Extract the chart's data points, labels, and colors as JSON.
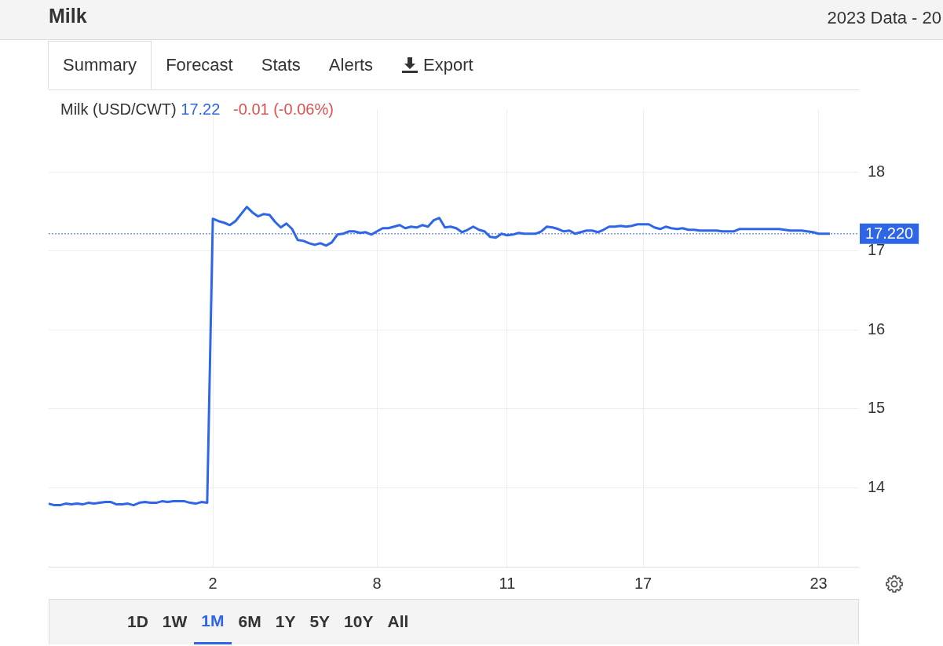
{
  "chart_data": {
    "type": "line",
    "title": "Milk",
    "subtitle": "2023 Data - 20",
    "ylabel": "Milk (USD/CWT)",
    "annotations": [
      "17.22",
      "-0.01 (-0.06%)",
      "Summary",
      "Forecast",
      "Stats",
      "Alerts",
      "Export",
      "1D",
      "1W",
      "1M",
      "6M",
      "1Y",
      "5Y",
      "10Y",
      "All"
    ],
    "categories": [
      null,
      null,
      null,
      null,
      null,
      null,
      null,
      null,
      null,
      null,
      null,
      null,
      null,
      null,
      null,
      null,
      null,
      null,
      null,
      null,
      null,
      null,
      null,
      null,
      null,
      null,
      null,
      null,
      null,
      "2",
      null,
      null,
      null,
      null,
      null,
      null,
      null,
      null,
      null,
      null,
      null,
      null,
      null,
      null,
      null,
      null,
      null,
      null,
      null,
      null,
      null,
      null,
      null,
      null,
      null,
      null,
      null,
      null,
      "8",
      null,
      null,
      null,
      null,
      null,
      null,
      null,
      null,
      null,
      null,
      null,
      null,
      null,
      null,
      null,
      null,
      null,
      null,
      null,
      null,
      null,
      null,
      "11",
      null,
      null,
      null,
      null,
      null,
      null,
      null,
      null,
      null,
      null,
      null,
      null,
      null,
      null,
      null,
      null,
      null,
      null,
      null,
      null,
      null,
      null,
      null,
      "17",
      null,
      null,
      null,
      null,
      null,
      null,
      null,
      null,
      null,
      null,
      null,
      null,
      null,
      null,
      null,
      null,
      null,
      null,
      null,
      null,
      null,
      null,
      null,
      null,
      null,
      null,
      null,
      null,
      null,
      null,
      "23",
      null,
      null,
      null,
      null,
      null,
      null,
      null
    ],
    "series": [
      {
        "color": "#2f66e8",
        "values": [
          13.8,
          13.78,
          13.78,
          13.8,
          13.79,
          13.8,
          13.79,
          13.81,
          13.8,
          13.81,
          13.82,
          13.82,
          13.79,
          13.79,
          13.8,
          13.78,
          13.81,
          13.82,
          13.81,
          13.81,
          13.83,
          13.82,
          13.83,
          13.83,
          13.83,
          13.81,
          13.8,
          13.82,
          13.81,
          17.41,
          17.38,
          17.36,
          17.33,
          17.38,
          17.47,
          17.56,
          17.49,
          17.44,
          17.47,
          17.46,
          17.37,
          17.3,
          17.35,
          17.28,
          17.14,
          17.13,
          17.1,
          17.08,
          17.1,
          17.07,
          17.11,
          17.21,
          17.22,
          17.25,
          17.25,
          17.23,
          17.24,
          17.21,
          17.25,
          17.29,
          17.29,
          17.31,
          17.33,
          17.29,
          17.31,
          17.3,
          17.33,
          17.31,
          17.39,
          17.42,
          17.3,
          17.31,
          17.29,
          17.24,
          17.27,
          17.31,
          17.27,
          17.25,
          17.18,
          17.17,
          17.22,
          17.2,
          17.21,
          17.23,
          17.22,
          17.22,
          17.22,
          17.25,
          17.31,
          17.3,
          17.28,
          17.25,
          17.26,
          17.22,
          17.24,
          17.26,
          17.26,
          17.24,
          17.27,
          17.31,
          17.31,
          17.32,
          17.31,
          17.32,
          17.34,
          17.34,
          17.34,
          17.3,
          17.28,
          17.31,
          17.29,
          17.28,
          17.29,
          17.27,
          17.27,
          17.26,
          17.26,
          17.26,
          17.26,
          17.25,
          17.25,
          17.25,
          17.28,
          17.28,
          17.28,
          17.28,
          17.28,
          17.28,
          17.28,
          17.28,
          17.27,
          17.26,
          17.26,
          17.26,
          17.25,
          17.24,
          17.22,
          17.22,
          17.22,
          null,
          null,
          null,
          null,
          null
        ]
      }
    ],
    "ylim": [
      13,
      18.8
    ],
    "yticks": [
      14,
      15,
      16,
      17,
      18
    ],
    "ref_lines": [
      {
        "axis": "y",
        "value": 17.22,
        "label": "17.220",
        "color": "#2f66e8",
        "line_style": "dotted"
      }
    ],
    "grid": true,
    "legend": false,
    "marker": "none",
    "line_style": "solid"
  }
}
